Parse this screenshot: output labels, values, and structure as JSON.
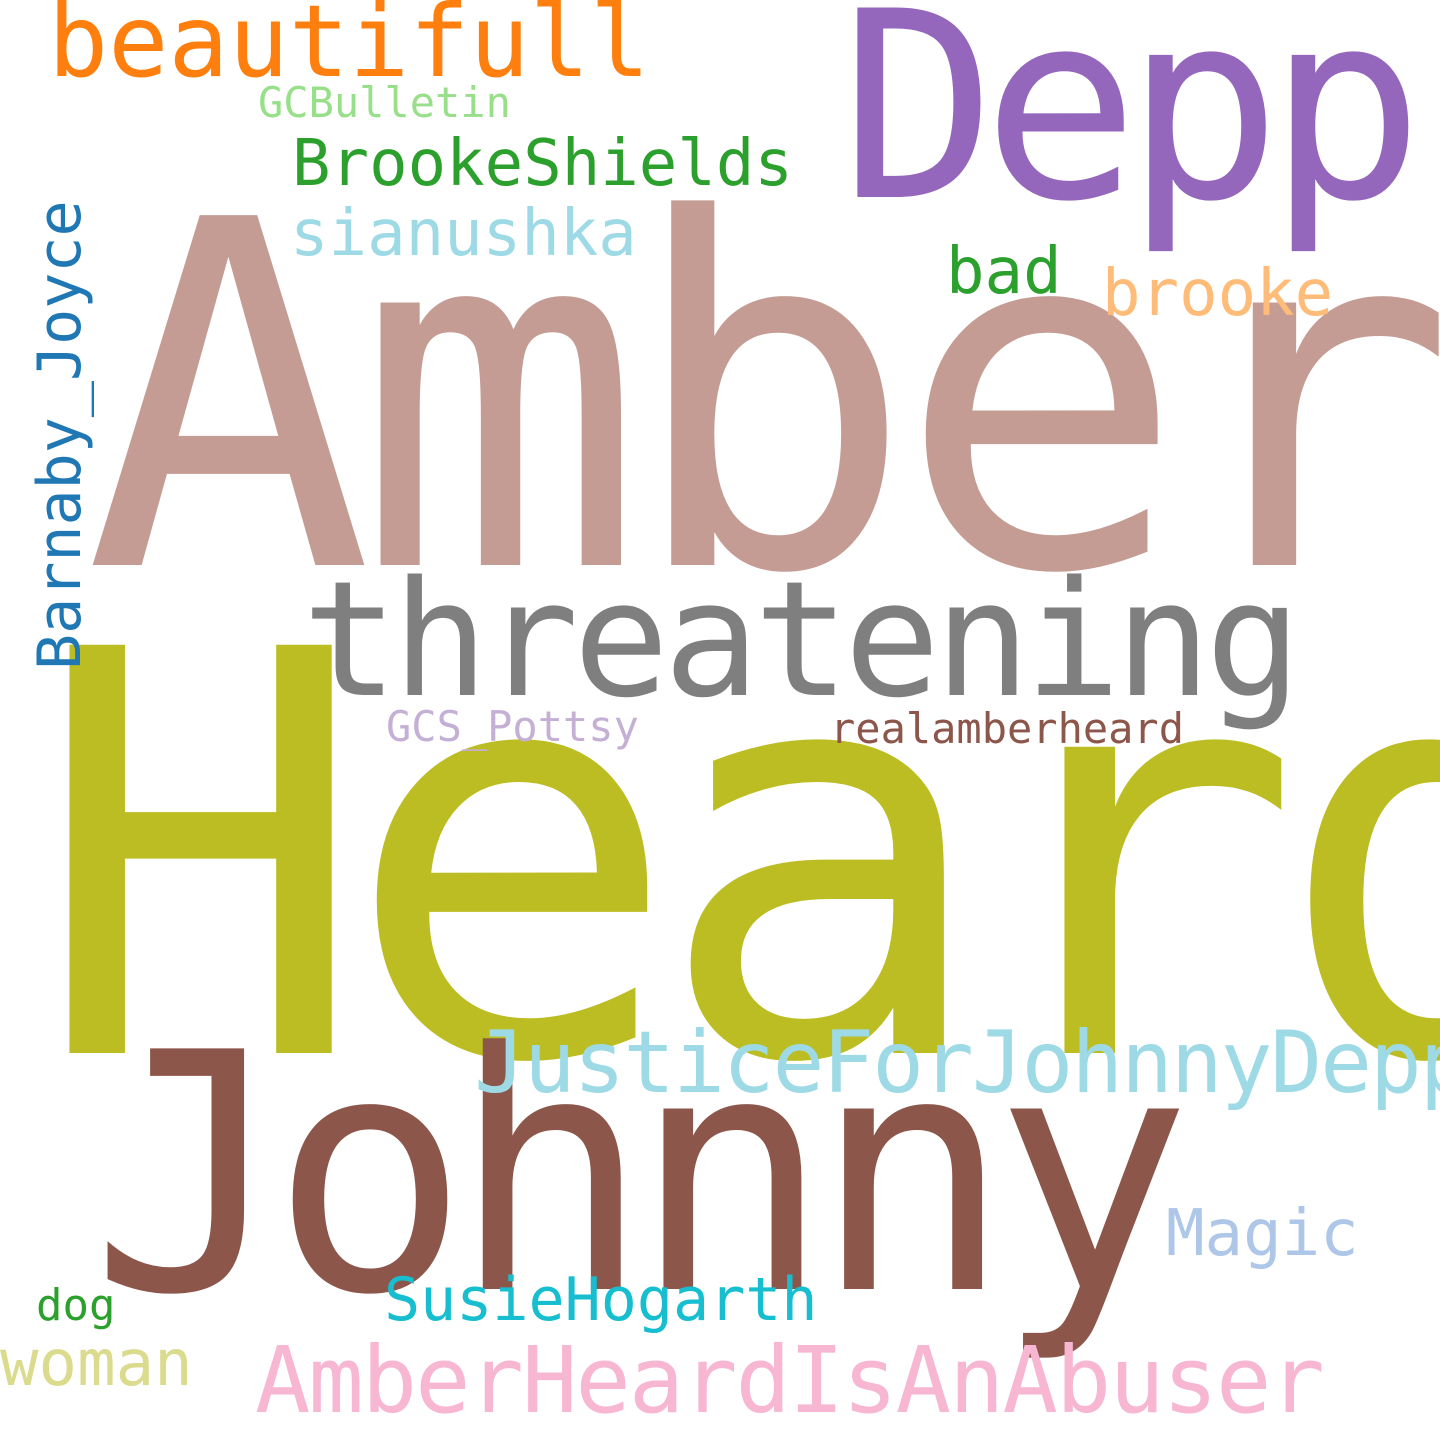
{
  "cloud": {
    "background": "#ffffff",
    "words": {
      "amber": {
        "text": "Amber",
        "color": "#c49c94"
      },
      "heard": {
        "text": "Heard",
        "color": "#bcbd22"
      },
      "depp": {
        "text": "Depp",
        "color": "#9467bd"
      },
      "johnny": {
        "text": "Johnny",
        "color": "#8c564b"
      },
      "threatening": {
        "text": "threatening",
        "color": "#7f7f7f"
      },
      "beautifull": {
        "text": "beautifull",
        "color": "#ff7f0e"
      },
      "justice": {
        "text": "JusticeForJohnnyDepp",
        "color": "#9edae5"
      },
      "amberheardisanabuser": {
        "text": "AmberHeardIsAnAbuser",
        "color": "#f7b6d2"
      },
      "brookeshields": {
        "text": "BrookeShields",
        "color": "#2ca02c"
      },
      "sianushka": {
        "text": "sianushka",
        "color": "#9edae5"
      },
      "gcbulletin": {
        "text": "GCBulletin",
        "color": "#98df8a"
      },
      "bad": {
        "text": "bad",
        "color": "#2ca02c"
      },
      "brooke": {
        "text": "brooke",
        "color": "#ffbb78"
      },
      "barnaby": {
        "text": "Barnaby_Joyce",
        "color": "#1f77b4"
      },
      "gcspottsy": {
        "text": "GCS_Pottsy",
        "color": "#c5b0d5"
      },
      "realamberheard": {
        "text": "realamberheard",
        "color": "#8c564b"
      },
      "magic": {
        "text": "Magic",
        "color": "#aec7e8"
      },
      "susiehogarth": {
        "text": "SusieHogarth",
        "color": "#17becf"
      },
      "dog": {
        "text": "dog",
        "color": "#2ca02c"
      },
      "woman": {
        "text": "woman",
        "color": "#dbdb8d"
      }
    }
  }
}
